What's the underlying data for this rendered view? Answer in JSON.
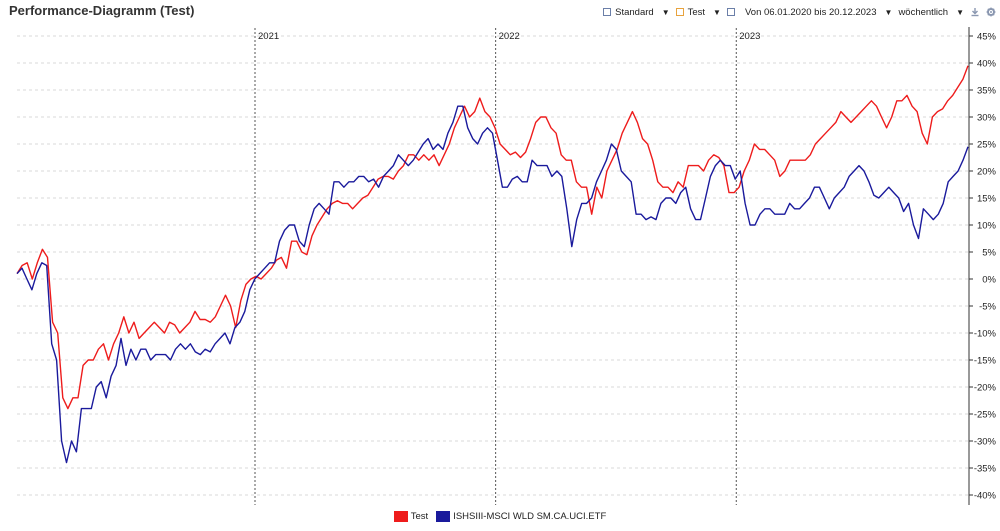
{
  "header": {
    "title": "Performance-Diagramm (Test)",
    "view_label": "Standard",
    "portfolio_label": "Test",
    "range_label": "Von 06.01.2020 bis 20.12.2023",
    "interval_label": "wöchentlich"
  },
  "colors": {
    "test": "#ee1c1c",
    "etf": "#1a1a9c",
    "grid": "#d9d9d9",
    "year_line": "#555555"
  },
  "chart_data": {
    "type": "line",
    "title": "",
    "xlabel": "",
    "ylabel": "",
    "ylim": [
      -40,
      45
    ],
    "yticks": [
      45,
      40,
      35,
      30,
      25,
      20,
      15,
      10,
      5,
      0,
      -5,
      -10,
      -15,
      -20,
      -25,
      -30,
      -35,
      -40
    ],
    "y_unit": "%",
    "x_start": "06.01.2020",
    "x_end": "20.12.2023",
    "year_markers": [
      "2021",
      "2022",
      "2023"
    ],
    "grid": true,
    "legend_position": "bottom-center",
    "series": [
      {
        "name": "Test",
        "values": [
          1,
          2.5,
          3,
          0,
          3,
          5.5,
          4,
          -8,
          -10,
          -22,
          -24,
          -22,
          -22,
          -16,
          -15,
          -15,
          -13,
          -12,
          -15,
          -12,
          -10,
          -7,
          -10,
          -8,
          -11,
          -10,
          -9,
          -8,
          -9,
          -10,
          -8,
          -8.5,
          -10,
          -9,
          -8,
          -6,
          -7.5,
          -7.5,
          -8,
          -7,
          -5,
          -3,
          -5,
          -9,
          -4,
          -1,
          0,
          0.5,
          0,
          1,
          2,
          3.5,
          4,
          2,
          7,
          7,
          5,
          4.5,
          8,
          10,
          11.5,
          13,
          14,
          14.5,
          14,
          14,
          13,
          14,
          15,
          15.5,
          17,
          18.5,
          19,
          19,
          18.5,
          20,
          21,
          23,
          23,
          22,
          23,
          22,
          23,
          21,
          23,
          25,
          28,
          30,
          32,
          30,
          31,
          33.5,
          31,
          30,
          28,
          25,
          24,
          23,
          23.5,
          22.5,
          23.5,
          26,
          29,
          30,
          30,
          28,
          27,
          23,
          22,
          22,
          18,
          17,
          17,
          12,
          17,
          15,
          20,
          22,
          24,
          27,
          29,
          31,
          29,
          26,
          25,
          22,
          18,
          17,
          17,
          16,
          18,
          17,
          21,
          21,
          21,
          20,
          22,
          23,
          22.5,
          21,
          16,
          16,
          17,
          20,
          22,
          25,
          24,
          24,
          23,
          22,
          19,
          20,
          22,
          22,
          22,
          22,
          23,
          25,
          26,
          27,
          28,
          29,
          31,
          30,
          29,
          30,
          31,
          32,
          33,
          32,
          30,
          28,
          30,
          33,
          33,
          34,
          32,
          31,
          27,
          25,
          30,
          31,
          31.5,
          33,
          34,
          35.5,
          37,
          39.5
        ]
      },
      {
        "name": "ISHSIII-MSCI WLD SM.CA.UCI.ETF",
        "values": [
          1,
          2,
          0,
          -2,
          1,
          3,
          2.5,
          -12,
          -15,
          -30,
          -34,
          -30,
          -32,
          -24,
          -24,
          -24,
          -20,
          -19,
          -22,
          -18,
          -16,
          -11,
          -16,
          -13,
          -15,
          -13,
          -13,
          -15,
          -14,
          -14,
          -14,
          -15,
          -13,
          -12,
          -13,
          -12,
          -13.5,
          -14,
          -13,
          -13.5,
          -12,
          -11,
          -10,
          -12,
          -9,
          -8,
          -6,
          -2,
          0,
          1,
          2,
          3,
          3,
          7,
          9,
          10,
          10,
          7,
          6,
          10,
          13,
          14,
          13,
          12,
          18,
          18,
          17,
          18,
          18,
          19,
          19,
          18,
          18.5,
          17,
          19,
          20,
          21,
          23,
          22,
          21,
          22,
          23.5,
          25,
          26,
          24,
          25,
          24,
          27,
          29,
          32,
          32,
          28,
          26,
          25,
          27,
          28,
          27,
          22,
          17,
          17,
          18.5,
          19,
          18,
          18,
          22,
          21,
          21,
          21,
          19,
          20,
          19,
          13,
          6,
          11,
          14,
          14,
          15,
          18,
          20,
          22,
          25,
          24,
          20,
          19,
          18,
          12,
          12,
          11,
          11.5,
          11,
          14,
          15,
          15,
          14,
          16,
          17,
          13,
          11,
          11,
          15,
          19,
          21,
          22,
          21,
          21,
          18.5,
          20,
          14,
          10,
          10,
          12,
          13,
          13,
          12,
          12,
          12,
          14,
          13,
          13,
          14,
          15,
          17,
          17,
          15,
          13,
          15,
          16,
          17,
          19,
          20,
          21,
          20,
          18,
          15.5,
          15,
          16,
          17,
          16,
          15,
          12.5,
          14,
          10,
          7.5,
          13,
          12,
          11,
          12,
          14,
          18,
          19,
          20,
          22,
          24.5
        ]
      }
    ]
  }
}
